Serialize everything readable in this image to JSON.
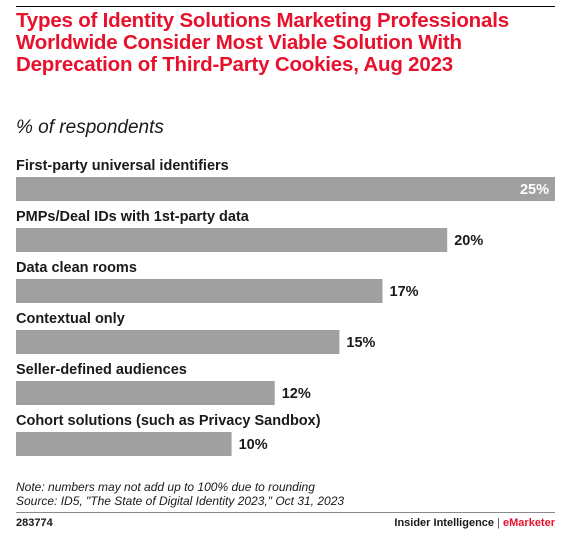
{
  "chart_data": {
    "type": "bar",
    "orientation": "horizontal",
    "title": "Types of Identity Solutions Marketing Professionals Worldwide Consider Most Viable Solution With Deprecation of Third-Party Cookies, Aug 2023",
    "subtitle": "% of respondents",
    "categories": [
      "First-party universal identifiers",
      "PMPs/Deal IDs with 1st-party data",
      "Data clean rooms",
      "Contextual only",
      "Seller-defined audiences",
      "Cohort solutions (such as Privacy Sandbox)"
    ],
    "values": [
      25,
      20,
      17,
      15,
      12,
      10
    ],
    "value_labels": [
      "25%",
      "20%",
      "17%",
      "15%",
      "12%",
      "10%"
    ],
    "xlim": [
      0,
      25
    ],
    "unit": "%",
    "grid": false,
    "legend": "none",
    "bar_color": "#a0a0a0",
    "inside_label_color": "#ffffff",
    "outside_label_color": "#1a1a1a"
  },
  "note": "Note: numbers may not add up to 100% due to rounding",
  "source": "Source: ID5, \"The State of Digital Identity 2023,\" Oct 31, 2023",
  "chart_id": "283774",
  "brand": {
    "name": "Insider Intelligence",
    "separator": "|",
    "accent": "eMarketer"
  },
  "colors": {
    "title": "#e8112d",
    "text": "#1a1a1a",
    "bar": "#a0a0a0"
  }
}
